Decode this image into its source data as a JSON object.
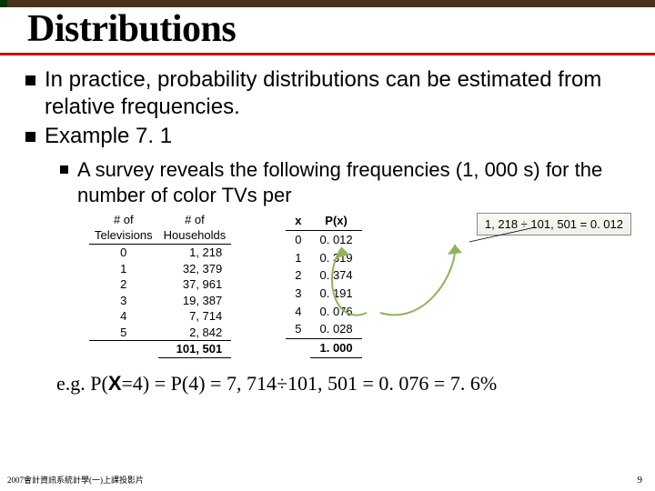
{
  "title": "Distributions",
  "bullet1": "In practice, probability distributions can be estimated from relative frequencies.",
  "bullet2": "Example 7. 1",
  "subbullet": "A survey reveals the following frequencies (1, 000 s) for the number of color TVs per",
  "left_table": {
    "h1a": "# of",
    "h1b": "Televisions",
    "h2a": "# of",
    "h2b": "Households",
    "rows": [
      {
        "tv": "0",
        "hh": "1, 218"
      },
      {
        "tv": "1",
        "hh": "32, 379"
      },
      {
        "tv": "2",
        "hh": "37, 961"
      },
      {
        "tv": "3",
        "hh": "19, 387"
      },
      {
        "tv": "4",
        "hh": "7, 714"
      },
      {
        "tv": "5",
        "hh": "2, 842"
      }
    ],
    "total": "101, 501"
  },
  "right_table": {
    "h1": "x",
    "h2": "P(x)",
    "rows": [
      {
        "x": "0",
        "p": "0. 012"
      },
      {
        "x": "1",
        "p": "0. 319"
      },
      {
        "x": "2",
        "p": "0. 374"
      },
      {
        "x": "3",
        "p": "0. 191"
      },
      {
        "x": "4",
        "p": "0. 076"
      },
      {
        "x": "5",
        "p": "0. 028"
      }
    ],
    "total": "1. 000"
  },
  "callout": "1, 218 ÷ 101, 501 = 0. 012",
  "eg": {
    "pre": "e.g. P(",
    "X": "X",
    "mid": "=4) = P(4) = 7, 714÷101, 501 = 0. 076 = 7. 6%"
  },
  "footer": "2007會計資訊系統計學(一)上課投影片",
  "pagenum": "9",
  "colors": {
    "rule": "#cc0000",
    "callout_bg": "#efefe6",
    "pointer": "#91b35a"
  }
}
